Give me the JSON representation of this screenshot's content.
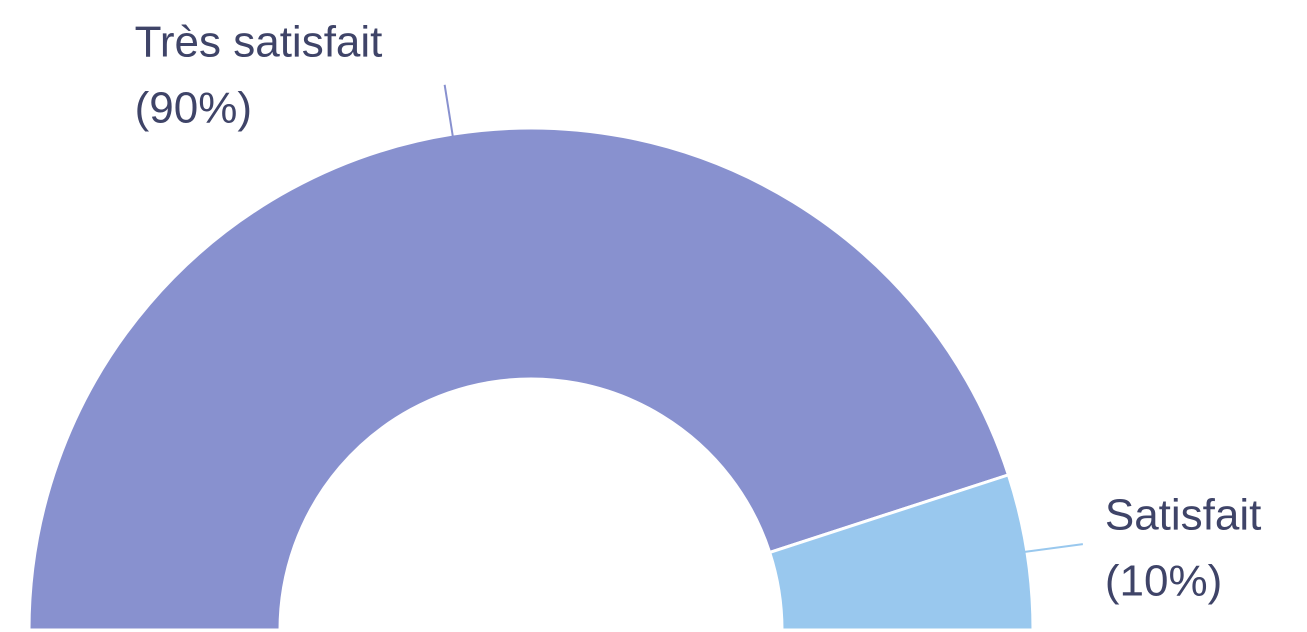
{
  "chart_data": {
    "type": "pie",
    "half": true,
    "inner_radius_ratio": 0.5,
    "categories": [
      "Très satisfait",
      "Satisfait"
    ],
    "values": [
      90,
      10
    ],
    "value_labels": [
      "(90%)",
      "(10%)"
    ],
    "colors": [
      "#8891cf",
      "#99c8ee"
    ]
  }
}
